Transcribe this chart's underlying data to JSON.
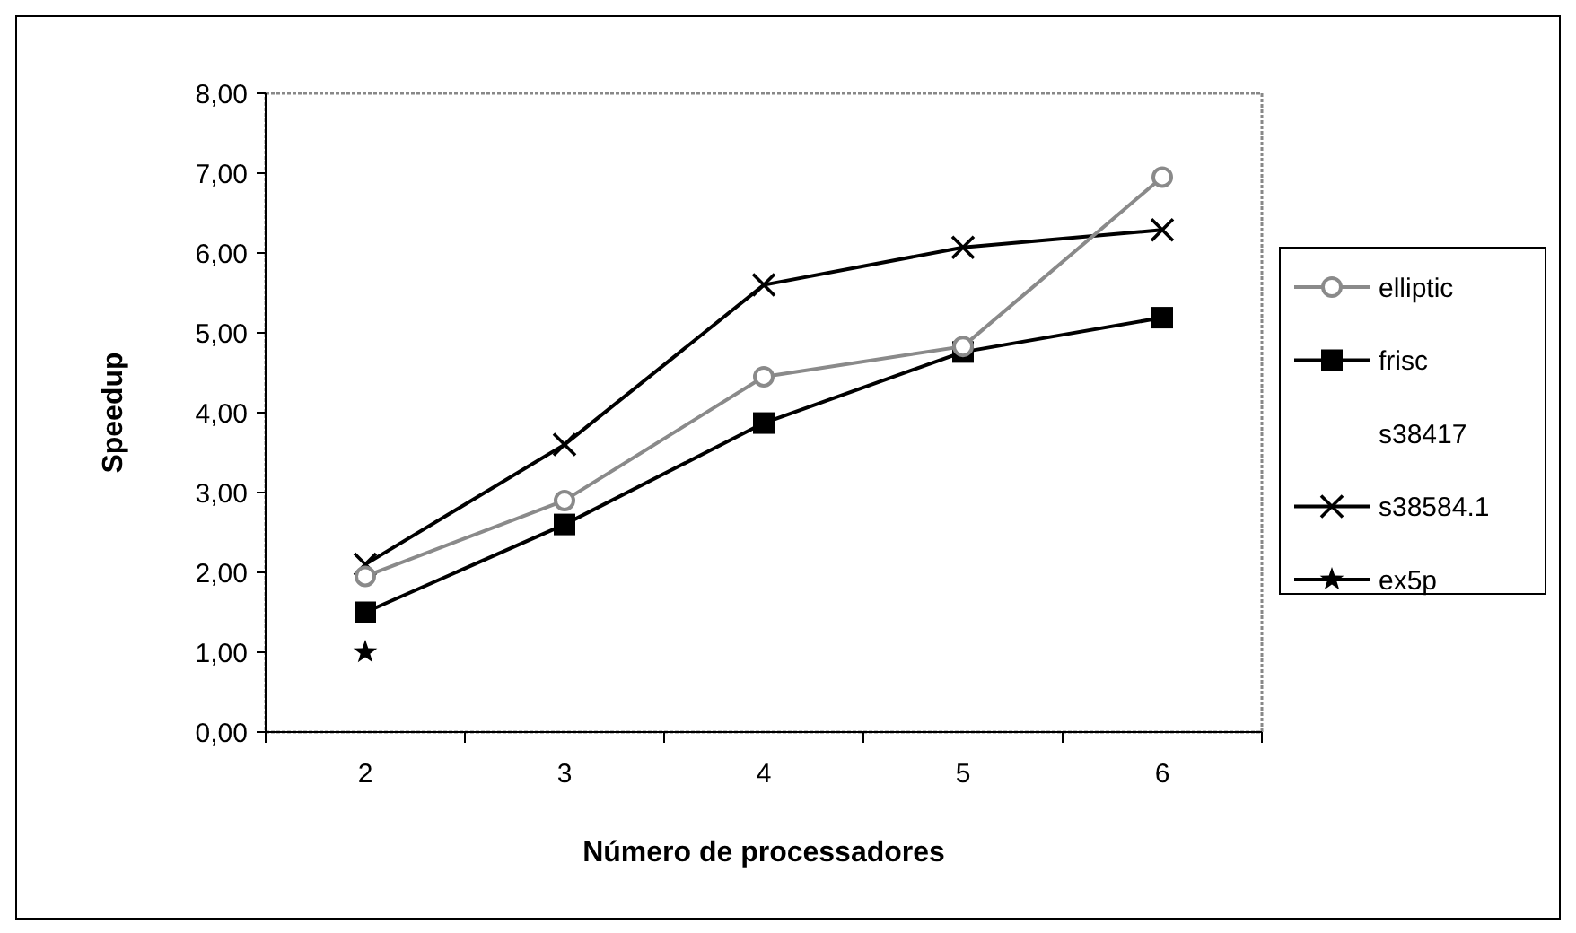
{
  "chart_data": {
    "type": "line",
    "xlabel": "Número de processadores",
    "ylabel": "Speedup",
    "categories": [
      "2",
      "3",
      "4",
      "5",
      "6"
    ],
    "ylim": [
      0,
      8
    ],
    "yticks": [
      {
        "value": 0,
        "label": "0,00"
      },
      {
        "value": 1,
        "label": "1,00"
      },
      {
        "value": 2,
        "label": "2,00"
      },
      {
        "value": 3,
        "label": "3,00"
      },
      {
        "value": 4,
        "label": "4,00"
      },
      {
        "value": 5,
        "label": "5,00"
      },
      {
        "value": 6,
        "label": "6,00"
      },
      {
        "value": 7,
        "label": "7,00"
      },
      {
        "value": 8,
        "label": "8,00"
      }
    ],
    "grid": false,
    "legend": "right",
    "series": [
      {
        "name": "elliptic",
        "color": "#8a8a8a",
        "marker": "circle",
        "values": [
          1.95,
          2.9,
          4.45,
          4.83,
          6.95
        ]
      },
      {
        "name": "frisc",
        "color": "#000000",
        "marker": "square",
        "values": [
          1.5,
          2.6,
          3.87,
          4.76,
          5.19
        ]
      },
      {
        "name": "s38417",
        "marker": "none",
        "values": [
          null,
          null,
          null,
          null,
          null
        ]
      },
      {
        "name": "s38584.1",
        "color": "#000000",
        "marker": "cross",
        "values": [
          2.1,
          3.6,
          5.6,
          6.07,
          6.29
        ]
      },
      {
        "name": "ex5p",
        "color": "#000000",
        "marker": "star",
        "values": [
          1,
          null,
          null,
          null,
          null
        ]
      }
    ]
  }
}
